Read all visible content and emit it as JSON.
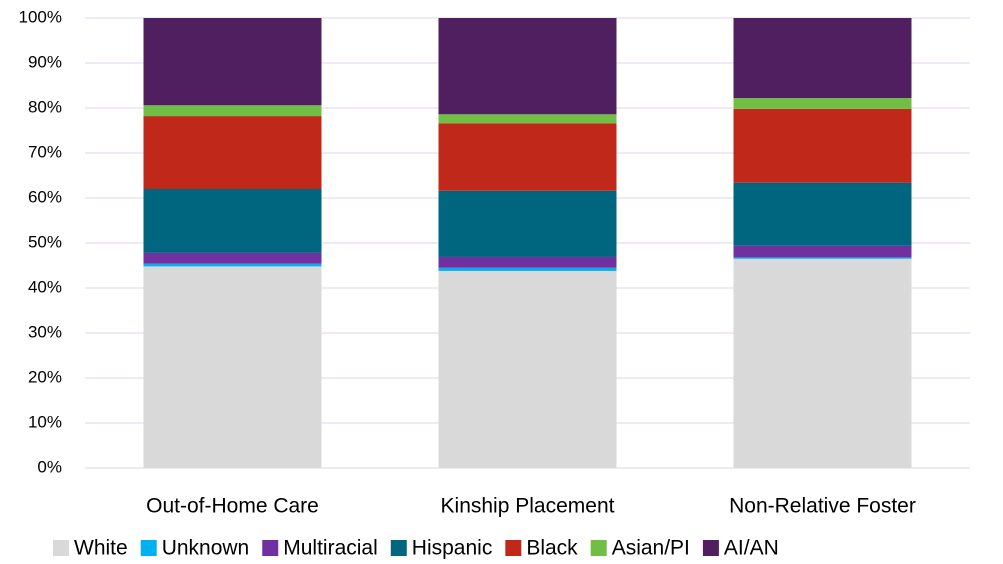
{
  "chart_data": {
    "type": "stacked_bar",
    "categories": [
      "Out-of-Home Care",
      "Kinship Placement",
      "Non-Relative Foster"
    ],
    "series": [
      {
        "name": "White",
        "color": "#d9d9d9",
        "values": [
          44.8,
          43.8,
          46.5
        ]
      },
      {
        "name": "Unknown",
        "color": "#00b0f0",
        "values": [
          0.6,
          0.7,
          0.3
        ]
      },
      {
        "name": "Multiracial",
        "color": "#7030a0",
        "values": [
          2.4,
          2.4,
          2.6
        ]
      },
      {
        "name": "Hispanic",
        "color": "#006680",
        "values": [
          14.2,
          14.7,
          14.0
        ]
      },
      {
        "name": "Black",
        "color": "#c0281a",
        "values": [
          16.2,
          15.0,
          16.4
        ]
      },
      {
        "name": "Asian/PI",
        "color": "#70bf44",
        "values": [
          2.4,
          2.0,
          2.4
        ]
      },
      {
        "name": "AI/AN",
        "color": "#4f1f5f",
        "values": [
          19.4,
          21.4,
          17.8
        ]
      }
    ],
    "ylim": [
      0,
      100
    ],
    "yticks": [
      {
        "value": 0,
        "label": "0%"
      },
      {
        "value": 10,
        "label": "10%"
      },
      {
        "value": 20,
        "label": "20%"
      },
      {
        "value": 30,
        "label": "30%"
      },
      {
        "value": 40,
        "label": "40%"
      },
      {
        "value": 50,
        "label": "50%"
      },
      {
        "value": 60,
        "label": "60%"
      },
      {
        "value": 70,
        "label": "70%"
      },
      {
        "value": 80,
        "label": "80%"
      },
      {
        "value": 90,
        "label": "90%"
      },
      {
        "value": 100,
        "label": "100%"
      }
    ],
    "grid": true,
    "legend": "bottom"
  }
}
